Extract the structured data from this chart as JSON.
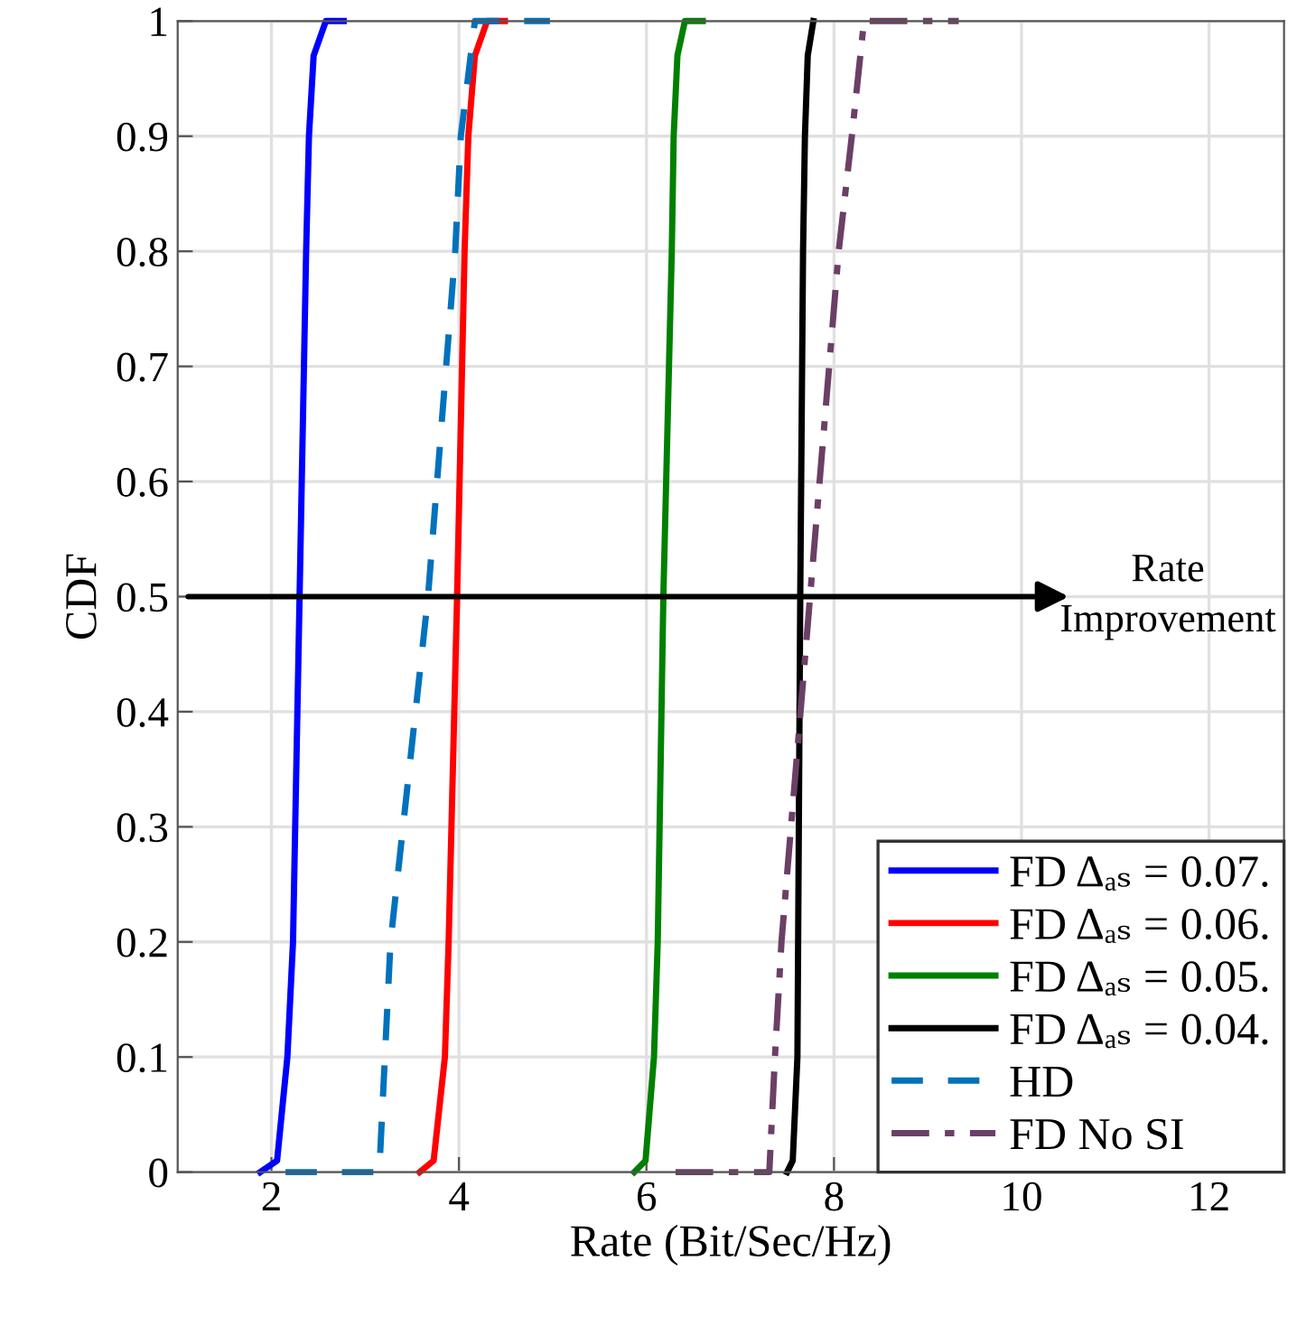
{
  "chart_data": {
    "type": "line",
    "xlabel": "Rate (Bit/Sec/Hz)",
    "ylabel": "CDF",
    "xlim": [
      1,
      12.8
    ],
    "xticks": [
      2,
      4,
      6,
      8,
      10,
      12
    ],
    "ylim": [
      0,
      1
    ],
    "yticks": [
      0,
      0.1,
      0.2,
      0.3,
      0.4,
      0.5,
      0.6,
      0.7,
      0.8,
      0.9,
      1
    ],
    "grid": true,
    "legend": "bottom right",
    "marker": "none",
    "annotations": [
      "Rate\nImprovement"
    ],
    "series": [
      {
        "name": "FD Δₐₛ = 0.07.",
        "color": "#0000ff",
        "line_style": "solid",
        "x": [
          1.88,
          2.06,
          2.17,
          2.23,
          2.3,
          2.37,
          2.4,
          2.45,
          2.58,
          2.77
        ],
        "values": [
          0,
          0.01,
          0.1,
          0.2,
          0.5,
          0.8,
          0.9,
          0.97,
          1,
          1
        ]
      },
      {
        "name": "FD Δₐₛ = 0.06.",
        "color": "#ff0000",
        "line_style": "solid",
        "x": [
          3.58,
          3.73,
          3.85,
          3.89,
          3.98,
          4.06,
          4.1,
          4.17,
          4.3,
          4.49
        ],
        "values": [
          0,
          0.01,
          0.1,
          0.2,
          0.5,
          0.8,
          0.9,
          0.97,
          1,
          1
        ]
      },
      {
        "name": "FD Δₐₛ = 0.05.",
        "color": "#008000",
        "line_style": "solid",
        "x": [
          5.87,
          5.99,
          6.08,
          6.12,
          6.18,
          6.27,
          6.29,
          6.33,
          6.41,
          6.6
        ],
        "values": [
          0,
          0.01,
          0.1,
          0.2,
          0.5,
          0.8,
          0.9,
          0.97,
          1,
          1
        ]
      },
      {
        "name": "FD Δₐₛ = 0.04.",
        "color": "#000000",
        "line_style": "solid",
        "x": [
          7.5,
          7.56,
          7.61,
          7.64,
          7.67,
          7.69,
          7.72,
          7.78
        ],
        "values": [
          0,
          0.01,
          0.1,
          0.5,
          0.8,
          0.9,
          0.97,
          1
        ]
      },
      {
        "name": "HD",
        "color": "#0072bd",
        "line_style": "dashed",
        "x": [
          2.15,
          3.15,
          3.21,
          3.27,
          3.67,
          3.96,
          4.02,
          4.17,
          4.97
        ],
        "values": [
          0,
          0,
          0.1,
          0.2,
          0.5,
          0.8,
          0.9,
          1,
          1
        ]
      },
      {
        "name": "FD No SI",
        "color": "#6b3f66",
        "line_style": "dashdot",
        "x": [
          6.31,
          7.31,
          7.37,
          7.44,
          8.05,
          8.19,
          8.32,
          9.33
        ],
        "values": [
          0,
          0,
          0.1,
          0.2,
          0.8,
          0.9,
          1,
          1
        ]
      }
    ]
  }
}
